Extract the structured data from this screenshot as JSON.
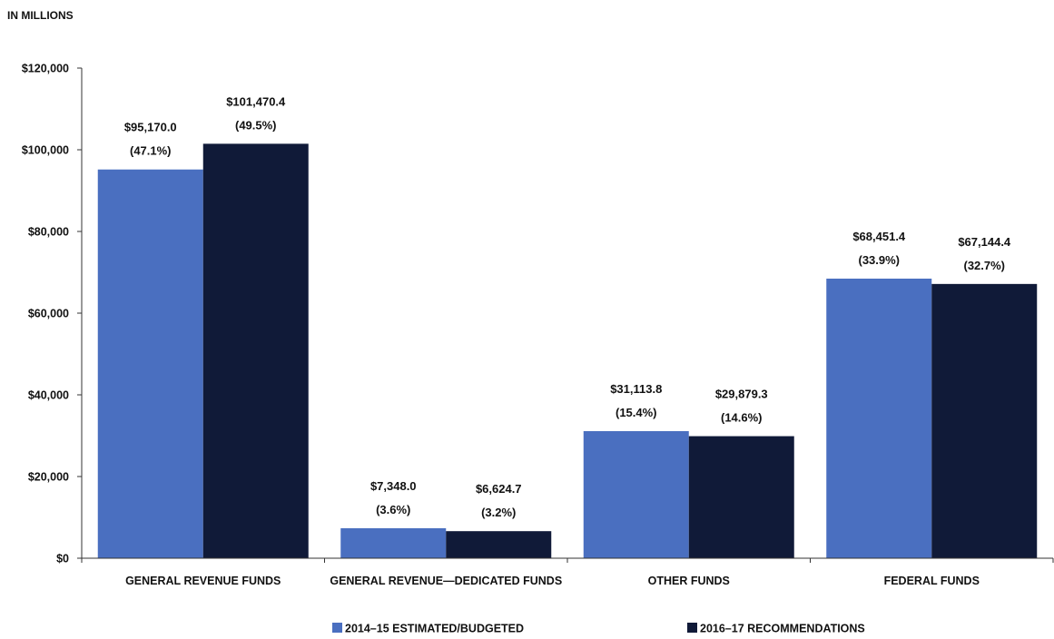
{
  "chart_data": {
    "type": "bar",
    "unit_label": "IN MILLIONS",
    "categories": [
      "GENERAL REVENUE FUNDS",
      "GENERAL REVENUE—DEDICATED FUNDS",
      "OTHER FUNDS",
      "FEDERAL FUNDS"
    ],
    "series": [
      {
        "name": "2014–15 ESTIMATED/BUDGETED",
        "color": "#4a6fc0",
        "values": [
          95170.0,
          7348.0,
          31113.8,
          68451.4
        ],
        "value_labels": [
          "$95,170.0",
          "$7,348.0",
          "$31,113.8",
          "$68,451.4"
        ],
        "pct_labels": [
          "(47.1%)",
          "(3.6%)",
          "(15.4%)",
          "(33.9%)"
        ]
      },
      {
        "name": "2016–17 RECOMMENDATIONS",
        "color": "#101a38",
        "values": [
          101470.4,
          6624.7,
          29879.3,
          67144.4
        ],
        "value_labels": [
          "$101,470.4",
          "$6,624.7",
          "$29,879.3",
          "$67,144.4"
        ],
        "pct_labels": [
          "(49.5%)",
          "(3.2%)",
          "(14.6%)",
          "(32.7%)"
        ]
      }
    ],
    "ylim": [
      0,
      120000
    ],
    "yticks": [
      0,
      20000,
      40000,
      60000,
      80000,
      100000,
      120000
    ],
    "ytick_labels": [
      "$0",
      "$20,000",
      "$40,000",
      "$60,000",
      "$80,000",
      "$100,000",
      "$120,000"
    ],
    "grid": false,
    "legend_position": "bottom"
  }
}
